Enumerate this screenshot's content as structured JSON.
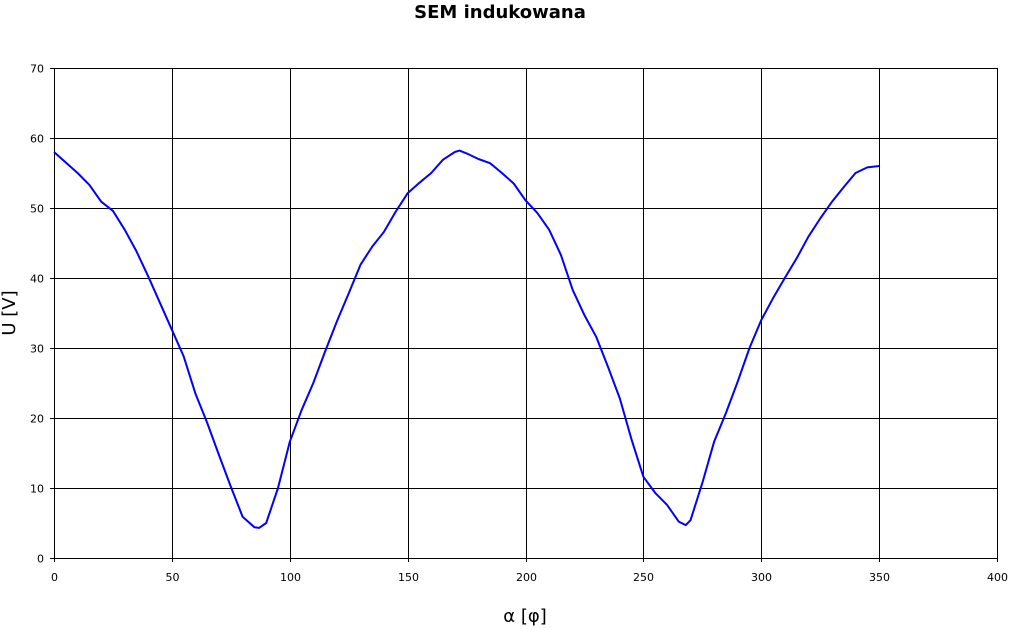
{
  "chart_data": {
    "type": "line",
    "title": "SEM indukowana",
    "xlabel": "α [φ]",
    "ylabel": "U [V]",
    "xlim": [
      0,
      400
    ],
    "ylim": [
      0,
      70
    ],
    "xticks": [
      0,
      50,
      100,
      150,
      200,
      250,
      300,
      350,
      400
    ],
    "yticks": [
      0,
      10,
      20,
      30,
      40,
      50,
      60,
      70
    ],
    "grid": true,
    "legend": "none",
    "series": [
      {
        "color": "#0000ff",
        "x": [
          0,
          5,
          10,
          15,
          20,
          25,
          30,
          35,
          40,
          45,
          50,
          55,
          60,
          65,
          70,
          75,
          80,
          85,
          87,
          90,
          95,
          100,
          105,
          110,
          115,
          120,
          125,
          130,
          135,
          140,
          145,
          150,
          155,
          160,
          165,
          170,
          172,
          175,
          180,
          185,
          190,
          195,
          200,
          205,
          210,
          215,
          220,
          225,
          230,
          235,
          240,
          245,
          250,
          255,
          260,
          265,
          268,
          270,
          275,
          280,
          285,
          290,
          295,
          300,
          305,
          310,
          315,
          320,
          325,
          330,
          335,
          340,
          345,
          350
        ],
        "y": [
          58,
          56.5,
          55,
          53.3,
          50.9,
          49.6,
          46.9,
          43.8,
          40.2,
          36.4,
          32.6,
          28.8,
          23.5,
          19.3,
          14.7,
          10.2,
          5.9,
          4.4,
          4.3,
          5.0,
          10.0,
          16.6,
          21.1,
          25,
          29.5,
          33.8,
          37.8,
          41.9,
          44.5,
          46.6,
          49.5,
          52.1,
          53.6,
          55.0,
          56.9,
          58.0,
          58.2,
          57.8,
          57.0,
          56.4,
          55,
          53.5,
          51.1,
          49.3,
          46.9,
          43.3,
          38.3,
          34.7,
          31.6,
          27.3,
          22.8,
          16.9,
          11.6,
          9.3,
          7.6,
          5.2,
          4.7,
          5.4,
          10.7,
          16.6,
          20.7,
          25.2,
          30,
          34,
          37.1,
          40,
          42.8,
          45.9,
          48.5,
          50.9,
          53,
          55,
          55.8,
          56
        ]
      }
    ]
  }
}
